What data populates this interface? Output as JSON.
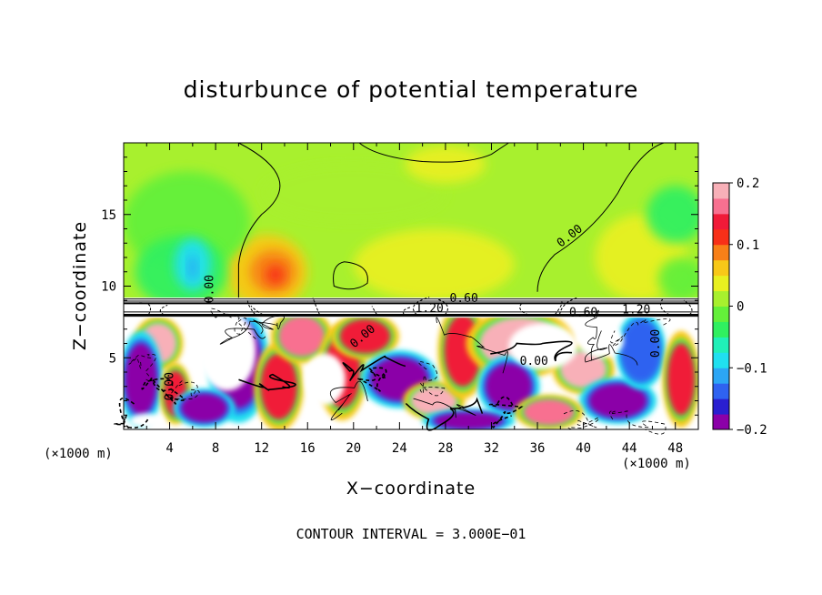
{
  "chart_data": {
    "type": "heatmap",
    "title": "disturbunce of potential temperature",
    "xlabel": "X−coordinate",
    "ylabel": "Z−coordinate",
    "x_unit_left": "(×1000 m)",
    "x_unit_right": "(×1000 m)",
    "xlim": [
      0,
      50
    ],
    "ylim": [
      0,
      20
    ],
    "xticks": [
      4,
      8,
      12,
      16,
      20,
      24,
      28,
      32,
      36,
      40,
      44,
      48
    ],
    "yticks": [
      5,
      10,
      15
    ],
    "colorbar": {
      "range": [
        -0.2,
        0.2
      ],
      "tick_values": [
        0.2,
        0.1,
        0,
        -0.1,
        -0.2
      ],
      "tick_labels": [
        "0.2",
        "0.1",
        "0",
        "−0.1",
        "−0.2"
      ],
      "colors": [
        "#8b00a8",
        "#2a1fd0",
        "#2f62f0",
        "#2ca6f5",
        "#20e0f0",
        "#20f0b8",
        "#30f060",
        "#64f03a",
        "#a8f02e",
        "#e8f020",
        "#f8c818",
        "#f88018",
        "#f83018",
        "#f01a38",
        "#f87090",
        "#f8b0b8"
      ]
    },
    "contour_interval_text": "CONTOUR INTERVAL = 3.000E−01",
    "contour_labels": [
      {
        "text": "0.00",
        "x": 7.8,
        "y": 9.8,
        "rotate": -90
      },
      {
        "text": "0.00",
        "x": 39.0,
        "y": 13.3,
        "rotate": -38
      },
      {
        "text": "0.60",
        "x": 29.6,
        "y": 8.9,
        "rotate": 0
      },
      {
        "text": "1.20",
        "x": 26.6,
        "y": 8.2,
        "rotate": 0
      },
      {
        "text": "0.60",
        "x": 40.0,
        "y": 7.9,
        "rotate": 0
      },
      {
        "text": "1.20",
        "x": 44.6,
        "y": 8.1,
        "rotate": 0
      },
      {
        "text": "0.00",
        "x": 21.0,
        "y": 6.3,
        "rotate": -40
      },
      {
        "text": "0.00",
        "x": 35.7,
        "y": 4.5,
        "rotate": 0
      },
      {
        "text": "0.00",
        "x": 46.6,
        "y": 6.0,
        "rotate": -90
      },
      {
        "text": "0.00",
        "x": 4.3,
        "y": 3.0,
        "rotate": -90
      }
    ],
    "upper_blobs": [
      {
        "x": 12.5,
        "y": 11.0,
        "rx": 3.5,
        "ry": 2.6,
        "value": 0.06
      },
      {
        "x": 13.0,
        "y": 11.0,
        "rx": 2.0,
        "ry": 1.5,
        "value": 0.09
      },
      {
        "x": 13.2,
        "y": 10.8,
        "rx": 0.8,
        "ry": 0.7,
        "value": 0.12
      },
      {
        "x": 5.5,
        "y": 14.5,
        "rx": 5.5,
        "ry": 3.5,
        "value": -0.02
      },
      {
        "x": 5.0,
        "y": 11.0,
        "rx": 4.0,
        "ry": 2.5,
        "value": -0.05
      },
      {
        "x": 6.0,
        "y": 11.5,
        "rx": 1.6,
        "ry": 1.8,
        "value": -0.08
      },
      {
        "x": 6.0,
        "y": 11.3,
        "rx": 0.4,
        "ry": 0.9,
        "value": -0.12
      },
      {
        "x": 27.0,
        "y": 11.5,
        "rx": 7.0,
        "ry": 2.5,
        "value": 0.03
      },
      {
        "x": 45.0,
        "y": 12.0,
        "rx": 4.0,
        "ry": 3.0,
        "value": 0.03
      },
      {
        "x": 48.0,
        "y": 15.0,
        "rx": 2.5,
        "ry": 2.0,
        "value": -0.03
      },
      {
        "x": 48.5,
        "y": 10.5,
        "rx": 2.0,
        "ry": 1.5,
        "value": -0.02
      },
      {
        "x": 20.0,
        "y": 16.5,
        "rx": 8.0,
        "ry": 2.0,
        "value": 0.01
      },
      {
        "x": 28.0,
        "y": 18.5,
        "rx": 3.5,
        "ry": 1.3,
        "value": 0.04
      }
    ],
    "lower_blobs": [
      {
        "x": 3.0,
        "y": 6.0,
        "rx": 1.6,
        "ry": 1.4,
        "value": 0.2
      },
      {
        "x": 1.5,
        "y": 3.5,
        "rx": 1.4,
        "ry": 2.5,
        "value": -0.2
      },
      {
        "x": 4.5,
        "y": 2.5,
        "rx": 1.0,
        "ry": 1.6,
        "value": 0.15
      },
      {
        "x": 10.0,
        "y": 4.5,
        "rx": 2.0,
        "ry": 3.0,
        "value": -0.2
      },
      {
        "x": 13.5,
        "y": 3.0,
        "rx": 1.6,
        "ry": 2.3,
        "value": 0.15
      },
      {
        "x": 15.5,
        "y": 6.5,
        "rx": 2.0,
        "ry": 1.4,
        "value": 0.17
      },
      {
        "x": 19.0,
        "y": 4.0,
        "rx": 1.6,
        "ry": 2.5,
        "value": 0.14
      },
      {
        "x": 21.0,
        "y": 6.5,
        "rx": 2.2,
        "ry": 1.2,
        "value": 0.15
      },
      {
        "x": 24.0,
        "y": 3.5,
        "rx": 2.5,
        "ry": 1.5,
        "value": -0.2
      },
      {
        "x": 27.0,
        "y": 2.0,
        "rx": 2.0,
        "ry": 1.0,
        "value": 0.2
      },
      {
        "x": 29.5,
        "y": 5.5,
        "rx": 1.6,
        "ry": 2.5,
        "value": 0.15
      },
      {
        "x": 34.5,
        "y": 6.0,
        "rx": 3.5,
        "ry": 1.8,
        "value": 0.2
      },
      {
        "x": 33.5,
        "y": 3.0,
        "rx": 2.0,
        "ry": 1.6,
        "value": -0.2
      },
      {
        "x": 40.0,
        "y": 4.2,
        "rx": 2.0,
        "ry": 1.3,
        "value": 0.2
      },
      {
        "x": 43.0,
        "y": 2.0,
        "rx": 2.5,
        "ry": 1.2,
        "value": -0.2
      },
      {
        "x": 45.0,
        "y": 5.5,
        "rx": 1.6,
        "ry": 2.0,
        "value": -0.15
      },
      {
        "x": 48.5,
        "y": 3.5,
        "rx": 1.2,
        "ry": 2.5,
        "value": 0.14
      },
      {
        "x": 30.0,
        "y": 0.6,
        "rx": 3.0,
        "ry": 0.6,
        "value": -0.2
      },
      {
        "x": 7.0,
        "y": 1.5,
        "rx": 2.0,
        "ry": 1.0,
        "value": -0.18
      },
      {
        "x": 37.0,
        "y": 1.2,
        "rx": 2.2,
        "ry": 0.9,
        "value": 0.16
      }
    ],
    "white_regions": [
      {
        "x": 9.0,
        "y": 5.5,
        "rx": 2.5,
        "ry": 2.8
      },
      {
        "x": 17.5,
        "y": 3.5,
        "rx": 1.8,
        "ry": 1.8
      },
      {
        "x": 36.5,
        "y": 5.8,
        "rx": 3.0,
        "ry": 1.6
      },
      {
        "x": 41.5,
        "y": 6.2,
        "rx": 2.0,
        "ry": 1.2
      },
      {
        "x": 2.0,
        "y": 0.6,
        "rx": 1.5,
        "ry": 0.5
      }
    ]
  }
}
